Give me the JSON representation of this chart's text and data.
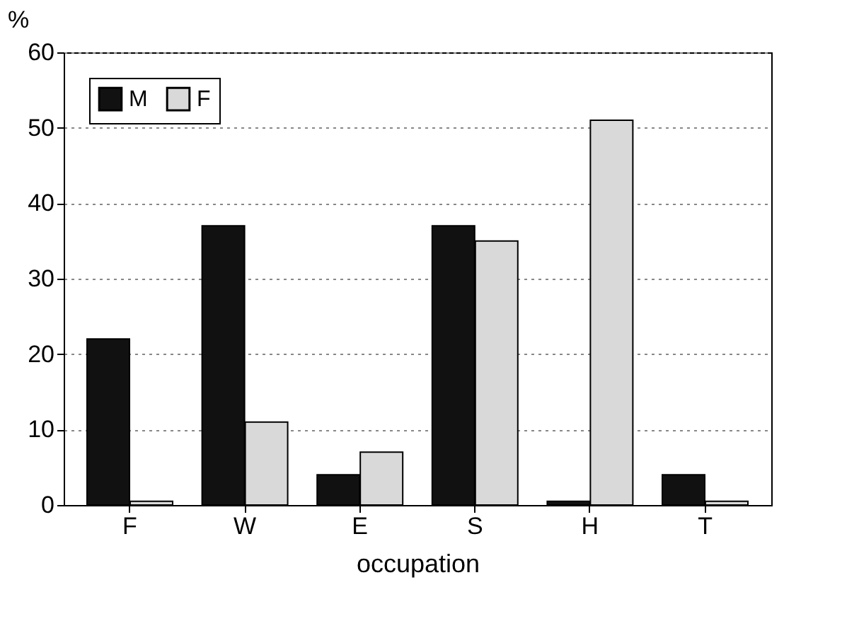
{
  "chart_data": {
    "type": "bar",
    "xlabel": "occupation",
    "ylabel": "%",
    "categories": [
      "F",
      "W",
      "E",
      "S",
      "H",
      "T"
    ],
    "series": [
      {
        "name": "M",
        "color": "#111111",
        "values": [
          22,
          37,
          4,
          37,
          0.5,
          4
        ]
      },
      {
        "name": "F",
        "color": "#d9d9d9",
        "values": [
          0.5,
          11,
          7,
          35,
          51,
          0.5
        ]
      }
    ],
    "ylim": [
      0,
      60
    ],
    "yticks": [
      0,
      10,
      20,
      30,
      40,
      50,
      60
    ],
    "grid": "y",
    "legend": "top left"
  }
}
